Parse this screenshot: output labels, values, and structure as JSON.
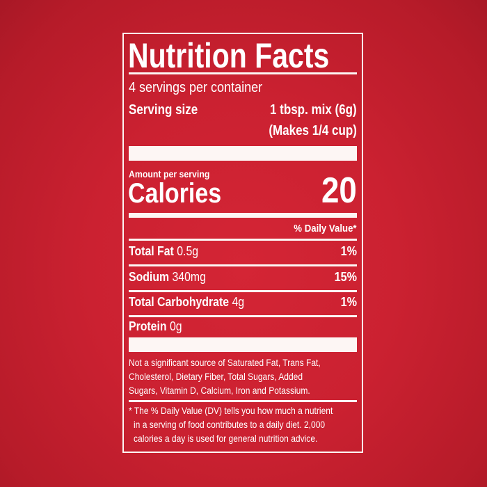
{
  "label": {
    "title": "Nutrition Facts",
    "servings_per_container": "4 servings per container",
    "serving_size_label": "Serving size",
    "serving_size_value": "1 tbsp. mix (6g)",
    "serving_size_note": "(Makes 1/4 cup)",
    "amount_per_serving": "Amount per serving",
    "calories_label": "Calories",
    "calories_value": "20",
    "daily_value_header": "% Daily Value*",
    "nutrients": [
      {
        "name": "Total Fat",
        "amount": "0.5g",
        "dv": "1%"
      },
      {
        "name": "Sodium",
        "amount": "340mg",
        "dv": "15%"
      },
      {
        "name": "Total Carbohydrate",
        "amount": "4g",
        "dv": "1%"
      },
      {
        "name": "Protein",
        "amount": "0g",
        "dv": ""
      }
    ],
    "not_significant": [
      "Not a significant source of Saturated Fat, Trans Fat,",
      "Cholesterol, Dietary Fiber, Total Sugars, Added",
      "Sugars, Vitamin D, Calcium, Iron and Potassium."
    ],
    "footnote": [
      "* The % Daily Value (DV) tells you how much a nutrient",
      "in a serving of food contributes to a daily diet. 2,000",
      "calories a day is used for general nutrition advice."
    ]
  },
  "colors": {
    "background": "#cb2131",
    "text": "#ffffff"
  }
}
